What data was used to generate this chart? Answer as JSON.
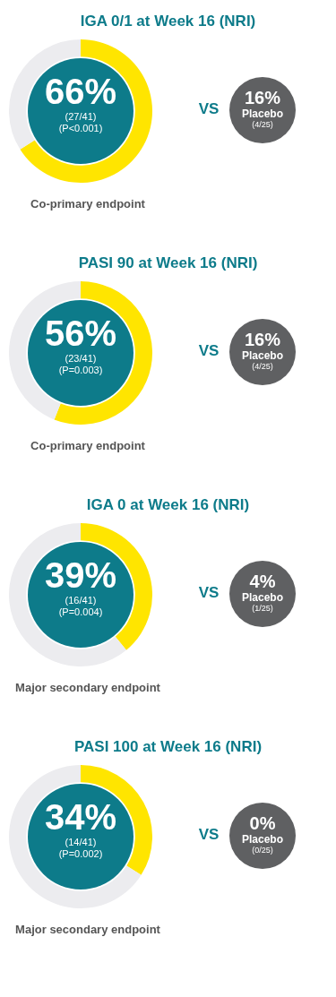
{
  "chart_data": [
    {
      "type": "donut",
      "title": "IGA 0/1 at Week 16 (NRI)",
      "categories": [
        null,
        null
      ],
      "values": [
        66,
        34
      ],
      "colors": [
        "#ffe500",
        "#ececef"
      ],
      "value_labels": [
        "66%",
        null
      ],
      "legend": false,
      "annotations": [
        "(27/41)",
        "(P<0.001)",
        "VS",
        "16%",
        "Placebo",
        "(4/25)",
        "Co-primary endpoint"
      ]
    },
    {
      "type": "donut",
      "title": "PASI 90 at Week 16 (NRI)",
      "categories": [
        null,
        null
      ],
      "values": [
        56,
        44
      ],
      "colors": [
        "#ffe500",
        "#ececef"
      ],
      "value_labels": [
        "56%",
        null
      ],
      "legend": false,
      "annotations": [
        "(23/41)",
        "(P=0.003)",
        "VS",
        "16%",
        "Placebo",
        "(4/25)",
        "Co-primary endpoint"
      ]
    },
    {
      "type": "donut",
      "title": "IGA 0 at Week 16 (NRI)",
      "categories": [
        null,
        null
      ],
      "values": [
        39,
        61
      ],
      "colors": [
        "#ffe500",
        "#ececef"
      ],
      "value_labels": [
        "39%",
        null
      ],
      "legend": false,
      "annotations": [
        "(16/41)",
        "(P=0.004)",
        "VS",
        "4%",
        "Placebo",
        "(1/25)",
        "Major secondary endpoint"
      ]
    },
    {
      "type": "donut",
      "title": "PASI 100 at Week 16 (NRI)",
      "categories": [
        null,
        null
      ],
      "values": [
        34,
        66
      ],
      "colors": [
        "#ffe500",
        "#ececef"
      ],
      "value_labels": [
        "34%",
        null
      ],
      "legend": false,
      "annotations": [
        "(14/41)",
        "(P=0.002)",
        "VS",
        "0%",
        "Placebo",
        "(0/25)",
        "Major secondary endpoint"
      ]
    }
  ]
}
